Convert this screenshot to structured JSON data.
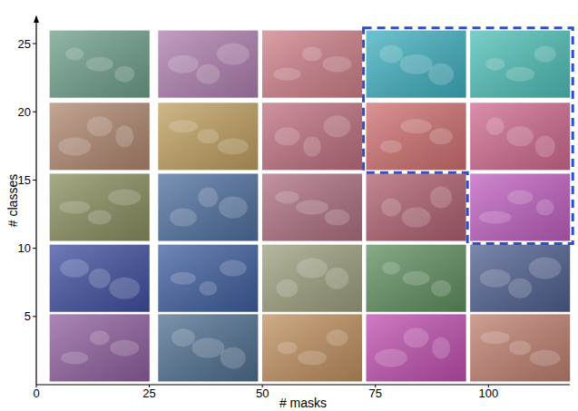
{
  "chart_data": {
    "type": "scatter",
    "marker": "image",
    "x_label": "# masks",
    "y_label": "# classes",
    "x": [
      14,
      38,
      61,
      84,
      107,
      14,
      38,
      61,
      84,
      107,
      14,
      38,
      61,
      84,
      107,
      14,
      38,
      61,
      84,
      107,
      14,
      38,
      61,
      84,
      107
    ],
    "values": [
      23.5,
      23.5,
      23.5,
      23.5,
      23.5,
      18.2,
      18.2,
      18.2,
      18.2,
      18.2,
      13,
      13,
      13,
      13,
      13,
      7.8,
      7.8,
      7.8,
      7.8,
      7.8,
      2.7,
      2.7,
      2.7,
      2.7,
      2.7
    ],
    "colors": [
      "#6fa08a",
      "#b07fb0",
      "#d0808a",
      "#40b0c0",
      "#50c0b8",
      "#b08870",
      "#c0a060",
      "#c07080",
      "#d07070",
      "#d06a90",
      "#8a9060",
      "#5070a0",
      "#b07080",
      "#b06070",
      "#c060c0",
      "#4050a0",
      "#4060a0",
      "#a0a080",
      "#609060",
      "#506090",
      "#9060a0",
      "#507090",
      "#c09060",
      "#c050b0",
      "#c08070"
    ],
    "xlim": [
      0,
      118
    ],
    "ylim": [
      0,
      27
    ],
    "xticks": [
      0,
      25,
      50,
      75,
      100
    ],
    "yticks": [
      5,
      10,
      15,
      20,
      25
    ],
    "grid": false
  }
}
